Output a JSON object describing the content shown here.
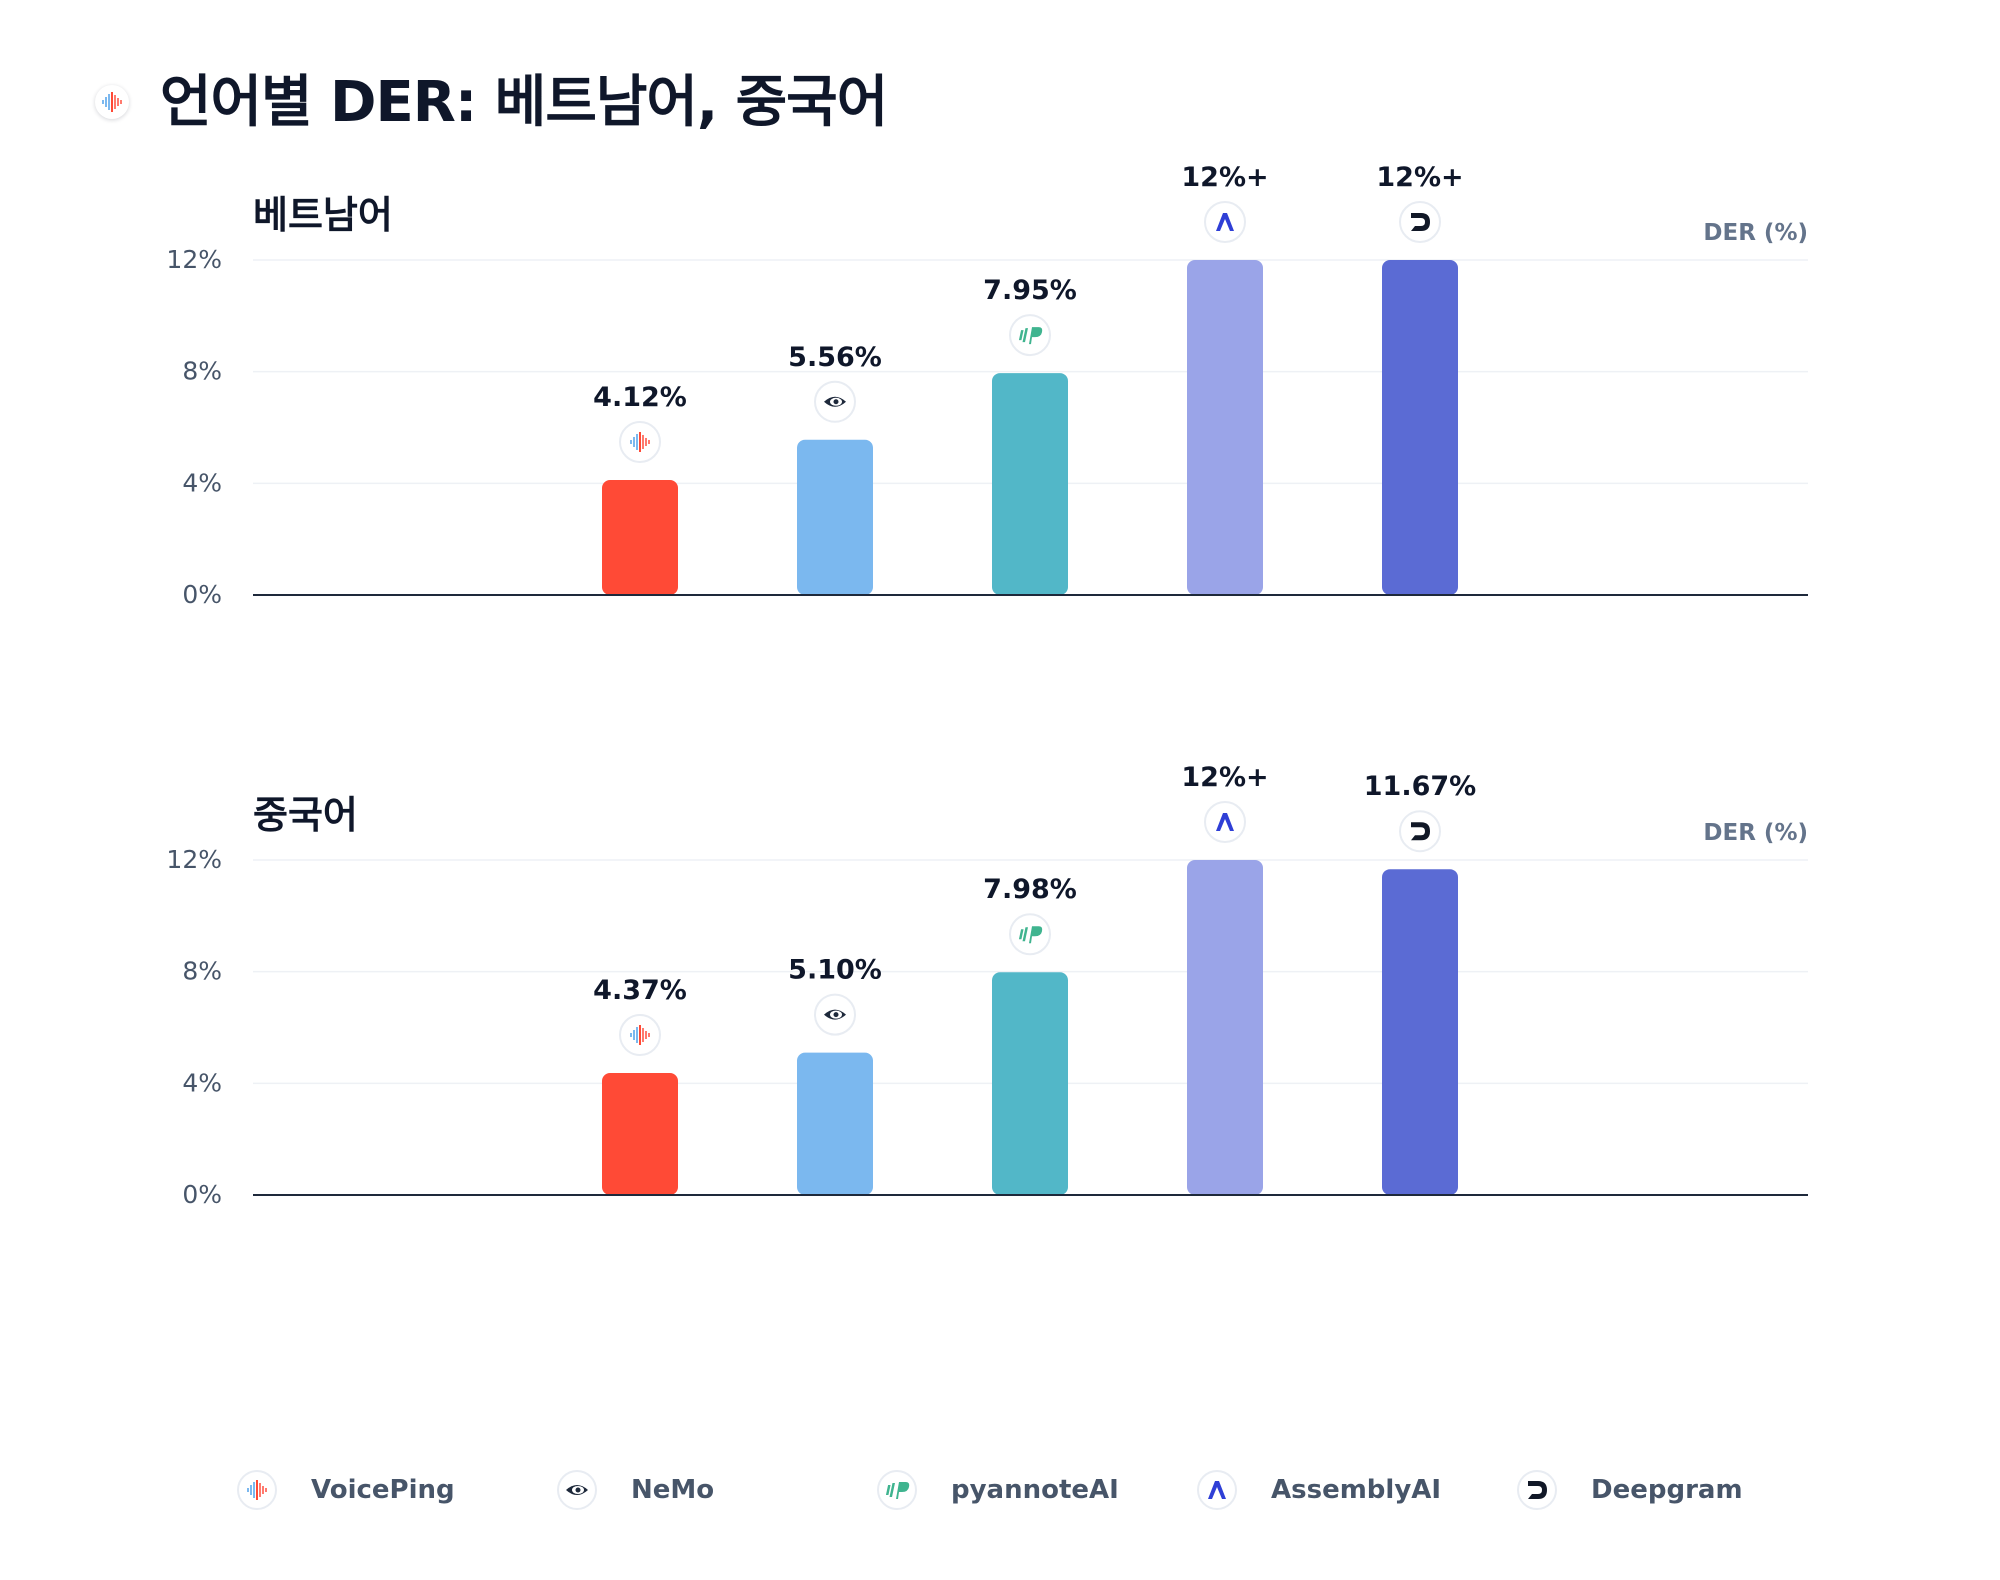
{
  "page": {
    "title": "언어별 DER: 베트남어, 중국어",
    "title_icon": "voiceping-logo-icon"
  },
  "models": [
    {
      "name": "VoicePing",
      "color": "#ff4a36",
      "icon": "voiceping-logo-icon"
    },
    {
      "name": "NeMo",
      "color": "#7bb8ef",
      "icon": "nvidia-eye-icon"
    },
    {
      "name": "pyannoteAI",
      "color": "#52b7c8",
      "icon": "pyannote-logo-icon"
    },
    {
      "name": "AssemblyAI",
      "color": "#9aa4e8",
      "icon": "assemblyai-logo-icon"
    },
    {
      "name": "Deepgram",
      "color": "#5b6bd4",
      "icon": "deepgram-logo-icon"
    }
  ],
  "chart_data": [
    {
      "type": "bar",
      "title": "베트남어",
      "ylabel": "DER (%)",
      "ylim": [
        0,
        12
      ],
      "yticks": [
        "0%",
        "4%",
        "8%",
        "12%"
      ],
      "grid": true,
      "categories": [
        "VoicePing",
        "NeMo",
        "pyannoteAI",
        "AssemblyAI",
        "Deepgram"
      ],
      "values": [
        4.12,
        5.56,
        7.95,
        12,
        12
      ],
      "labels": [
        "4.12%",
        "5.56%",
        "7.95%",
        "12%+",
        "12%+"
      ]
    },
    {
      "type": "bar",
      "title": "중국어",
      "ylabel": "DER (%)",
      "ylim": [
        0,
        12
      ],
      "yticks": [
        "0%",
        "4%",
        "8%",
        "12%"
      ],
      "grid": true,
      "categories": [
        "VoicePing",
        "NeMo",
        "pyannoteAI",
        "AssemblyAI",
        "Deepgram"
      ],
      "values": [
        4.37,
        5.1,
        7.98,
        12,
        11.67
      ],
      "labels": [
        "4.37%",
        "5.10%",
        "7.98%",
        "12%+",
        "11.67%"
      ]
    }
  ],
  "legend": {
    "placement": "bottom",
    "items": [
      "VoicePing",
      "NeMo",
      "pyannoteAI",
      "AssemblyAI",
      "Deepgram"
    ]
  }
}
